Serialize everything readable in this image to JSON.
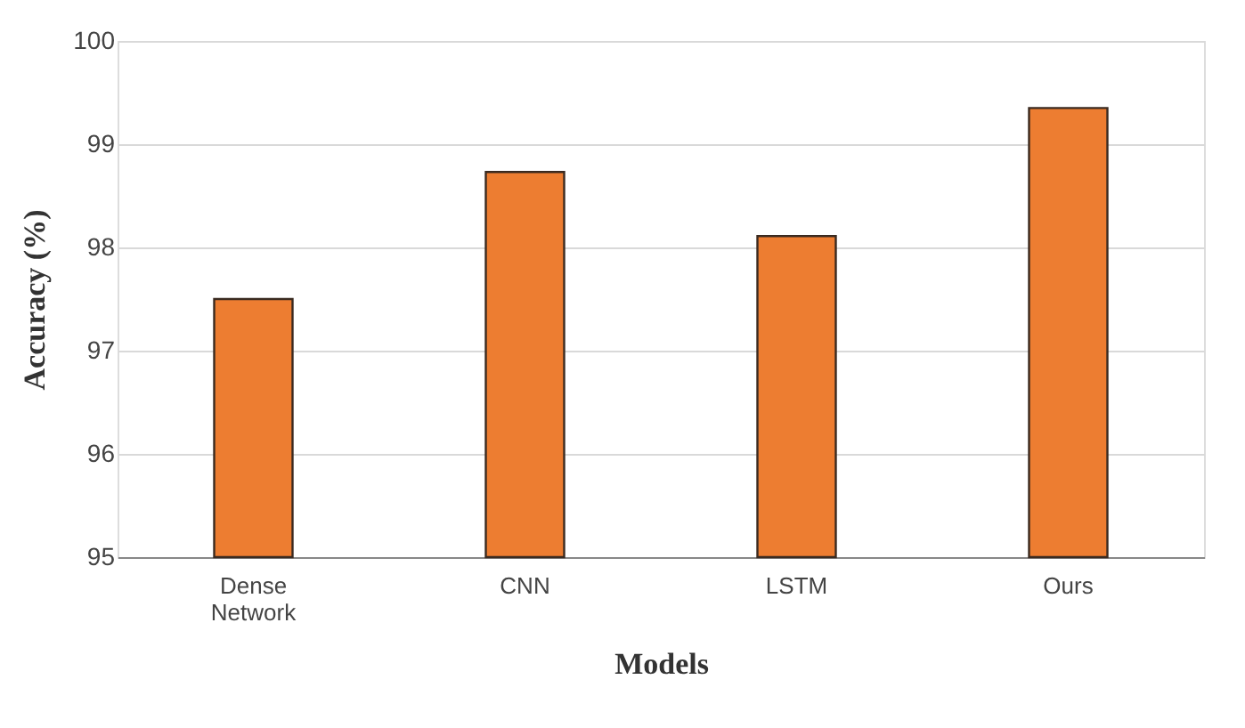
{
  "chart_data": {
    "type": "bar",
    "xlabel": "Models",
    "ylabel": "Accuracy (%)",
    "categories": [
      "Dense Network",
      "CNN",
      "LSTM",
      "Ours"
    ],
    "values": [
      97.5,
      98.73,
      98.11,
      99.35
    ],
    "color": "#ed7d31",
    "ylim": [
      95,
      100
    ],
    "yticks": [
      95,
      96,
      97,
      98,
      99,
      100
    ],
    "grid": "y"
  }
}
